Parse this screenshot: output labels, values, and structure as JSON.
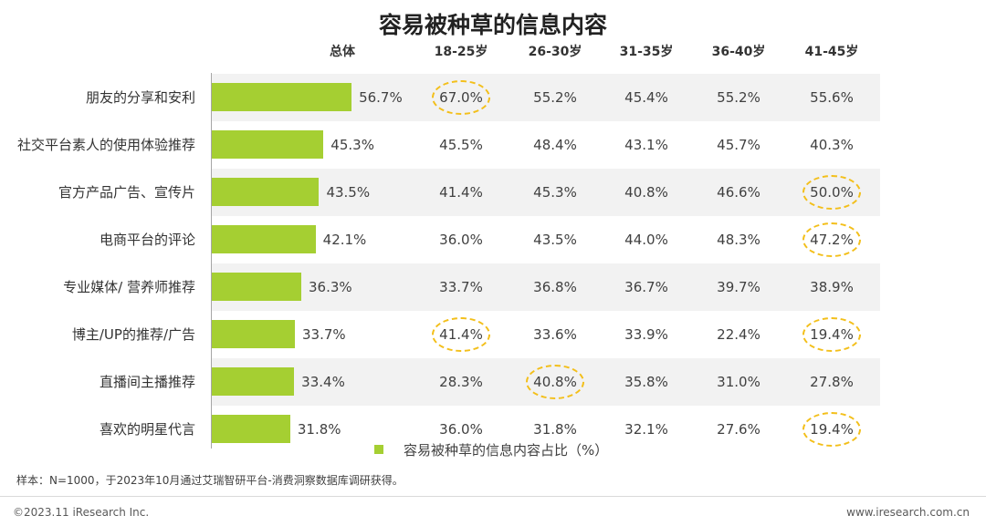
{
  "title": "容易被种草的信息内容",
  "headers": [
    "总体",
    "18-25岁",
    "26-30岁",
    "31-35岁",
    "36-40岁",
    "41-45岁"
  ],
  "legend": "容易被种草的信息内容占比（%）",
  "note": "样本：N=1000，于2023年10月通过艾瑞智研平台-消费洞察数据库调研获得。",
  "copyright": "©2023.11 iResearch Inc.",
  "website": "www.iresearch.com.cn",
  "colors": {
    "bar": "#a5cf32",
    "highlight": "#f3bf1a",
    "stripe": "#f2f2f2"
  },
  "chart_data": {
    "type": "bar",
    "orientation": "horizontal",
    "title": "容易被种草的信息内容",
    "unit": "%",
    "categories": [
      "朋友的分享和安利",
      "社交平台素人的使用体验推荐",
      "官方产品广告、宣传片",
      "电商平台的评论",
      "专业媒体/ 营养师推荐",
      "博主/UP的推荐/广告",
      "直播间主播推荐",
      "喜欢的明星代言"
    ],
    "series": [
      {
        "name": "容易被种草的信息内容占比（%）",
        "values": [
          56.7,
          45.3,
          43.5,
          42.1,
          36.3,
          33.7,
          33.4,
          31.8
        ]
      }
    ],
    "age_groups": [
      "18-25岁",
      "26-30岁",
      "31-35岁",
      "36-40岁",
      "41-45岁"
    ],
    "table": [
      [
        67.0,
        55.2,
        45.4,
        55.2,
        55.6
      ],
      [
        45.5,
        48.4,
        43.1,
        45.7,
        40.3
      ],
      [
        41.4,
        45.3,
        40.8,
        46.6,
        50.0
      ],
      [
        36.0,
        43.5,
        44.0,
        48.3,
        47.2
      ],
      [
        33.7,
        36.8,
        36.7,
        39.7,
        38.9
      ],
      [
        41.4,
        33.6,
        33.9,
        22.4,
        19.4
      ],
      [
        28.3,
        40.8,
        35.8,
        31.0,
        27.8
      ],
      [
        36.0,
        31.8,
        32.1,
        27.6,
        19.4
      ]
    ],
    "highlighted": [
      [
        0,
        0
      ],
      [
        2,
        4
      ],
      [
        3,
        4
      ],
      [
        5,
        0
      ],
      [
        5,
        4
      ],
      [
        6,
        1
      ],
      [
        7,
        4
      ]
    ],
    "grid": false,
    "legend_position": "bottom"
  }
}
